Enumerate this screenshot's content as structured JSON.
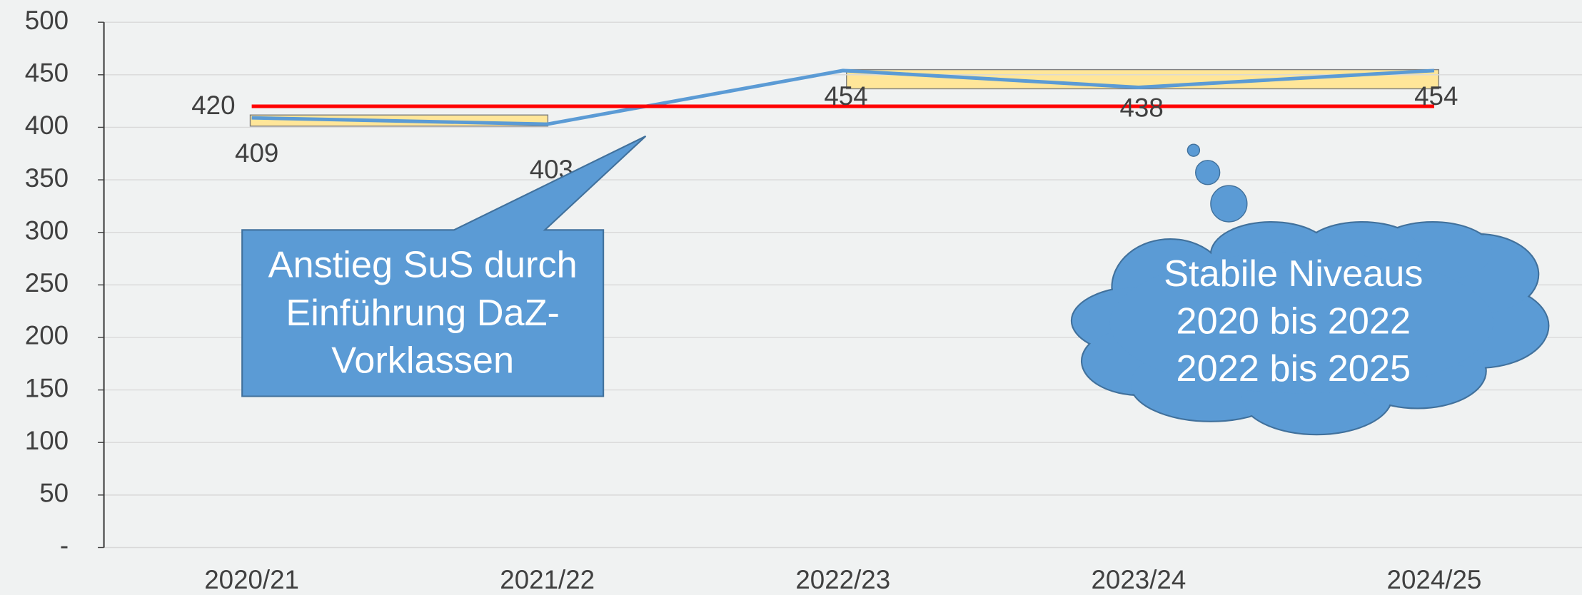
{
  "chart_data": {
    "type": "line",
    "categories": [
      "2020/21",
      "2021/22",
      "2022/23",
      "2023/24",
      "2024/25"
    ],
    "series": [
      {
        "color": "#5b9bd5",
        "values": [
          409,
          403,
          454,
          438,
          454
        ]
      },
      {
        "color": "#ff0000",
        "values": [
          420,
          420,
          420,
          420,
          420
        ]
      }
    ],
    "ylim": [
      0,
      500
    ],
    "yticks": [
      {
        "value": 0,
        "label": "-"
      },
      50,
      100,
      150,
      200,
      250,
      300,
      350,
      400,
      450,
      500
    ],
    "grid": true,
    "annotations": [
      {
        "lines": [
          "Anstieg SuS durch",
          "Einführung DaZ-",
          "Vorklassen"
        ]
      },
      {
        "lines": [
          "Stabile Niveaus",
          "2020 bis 2022",
          "2022 bis 2025"
        ]
      }
    ]
  }
}
